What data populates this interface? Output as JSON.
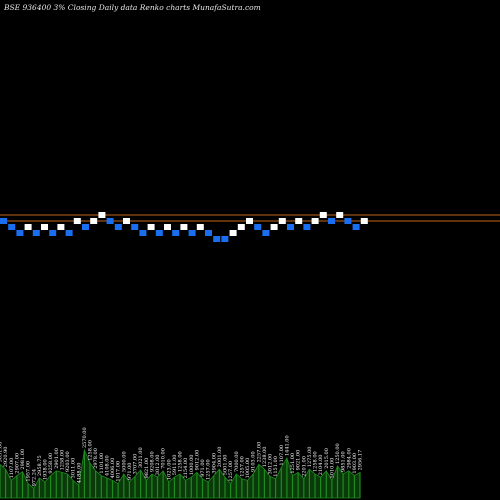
{
  "chart_data": {
    "type": "renko",
    "title": "BSE 936400  3% Closing Daily data  Renko  charts MunafaSutra.com",
    "colors": {
      "up_brick": "#ffffff",
      "down_brick": "#1a6ff0",
      "reference_line": "#c0661c",
      "volume_fill": "#0a3a0a",
      "volume_stroke": "#1f8a1f",
      "background": "#000000"
    },
    "reference_lines": [
      1,
      0
    ],
    "bricks": [
      {
        "dir": "down",
        "level": 0
      },
      {
        "dir": "down",
        "level": -1
      },
      {
        "dir": "down",
        "level": -2
      },
      {
        "dir": "up",
        "level": -1
      },
      {
        "dir": "down",
        "level": -2
      },
      {
        "dir": "up",
        "level": -1
      },
      {
        "dir": "down",
        "level": -2
      },
      {
        "dir": "up",
        "level": -1
      },
      {
        "dir": "down",
        "level": -2
      },
      {
        "dir": "up",
        "level": 0
      },
      {
        "dir": "down",
        "level": -1
      },
      {
        "dir": "up",
        "level": 0
      },
      {
        "dir": "up",
        "level": 1
      },
      {
        "dir": "down",
        "level": 0
      },
      {
        "dir": "down",
        "level": -1
      },
      {
        "dir": "up",
        "level": 0
      },
      {
        "dir": "down",
        "level": -1
      },
      {
        "dir": "down",
        "level": -2
      },
      {
        "dir": "up",
        "level": -1
      },
      {
        "dir": "down",
        "level": -2
      },
      {
        "dir": "up",
        "level": -1
      },
      {
        "dir": "down",
        "level": -2
      },
      {
        "dir": "up",
        "level": -1
      },
      {
        "dir": "down",
        "level": -2
      },
      {
        "dir": "up",
        "level": -1
      },
      {
        "dir": "down",
        "level": -2
      },
      {
        "dir": "down",
        "level": -3
      },
      {
        "dir": "down",
        "level": -3
      },
      {
        "dir": "up",
        "level": -2
      },
      {
        "dir": "up",
        "level": -1
      },
      {
        "dir": "up",
        "level": 0
      },
      {
        "dir": "down",
        "level": -1
      },
      {
        "dir": "down",
        "level": -2
      },
      {
        "dir": "up",
        "level": -1
      },
      {
        "dir": "up",
        "level": 0
      },
      {
        "dir": "down",
        "level": -1
      },
      {
        "dir": "up",
        "level": 0
      },
      {
        "dir": "down",
        "level": -1
      },
      {
        "dir": "up",
        "level": 0
      },
      {
        "dir": "up",
        "level": 1
      },
      {
        "dir": "down",
        "level": 0
      },
      {
        "dir": "up",
        "level": 1
      },
      {
        "dir": "down",
        "level": 0
      },
      {
        "dir": "down",
        "level": -1
      },
      {
        "dir": "up",
        "level": 0
      }
    ],
    "volume": [
      {
        "label": "3051.00",
        "value": 0.42
      },
      {
        "label": "2920.90",
        "value": 0.36
      },
      {
        "label": "1107.00",
        "value": 0.22
      },
      {
        "label": "2907.00",
        "value": 0.28
      },
      {
        "label": "2981.00",
        "value": 0.33
      },
      {
        "label": "1957.00",
        "value": 0.18
      },
      {
        "label": "972.24",
        "value": 0.12
      },
      {
        "label": "2958.75",
        "value": 0.25
      },
      {
        "label": "1938.00",
        "value": 0.2
      },
      {
        "label": "9258.00",
        "value": 0.28
      },
      {
        "label": "2901.00",
        "value": 0.34
      },
      {
        "label": "1258.00",
        "value": 0.32
      },
      {
        "label": "9203.00",
        "value": 0.3
      },
      {
        "label": "3011.00",
        "value": 0.22
      },
      {
        "label": "4188.00",
        "value": 0.16
      },
      {
        "label": "2570.00",
        "value": 0.6
      },
      {
        "label": "1258.00",
        "value": 0.44
      },
      {
        "label": "2978.00",
        "value": 0.34
      },
      {
        "label": "1101.00",
        "value": 0.28
      },
      {
        "label": "4108.00",
        "value": 0.25
      },
      {
        "label": "4006.00",
        "value": 0.22
      },
      {
        "label": "1017.00",
        "value": 0.18
      },
      {
        "label": "5000.00",
        "value": 0.3
      },
      {
        "label": "971.00",
        "value": 0.2
      },
      {
        "label": "3707.00",
        "value": 0.27
      },
      {
        "label": "3021.00",
        "value": 0.35
      },
      {
        "label": "9821.00",
        "value": 0.22
      },
      {
        "label": "9208.00",
        "value": 0.3
      },
      {
        "label": "3012.00",
        "value": 0.26
      },
      {
        "label": "7010.00",
        "value": 0.34
      },
      {
        "label": "1023.00",
        "value": 0.2
      },
      {
        "label": "5911.00",
        "value": 0.26
      },
      {
        "label": "1258.00",
        "value": 0.3
      },
      {
        "label": "2154.00",
        "value": 0.22
      },
      {
        "label": "1000.00",
        "value": 0.26
      },
      {
        "label": "9012.00",
        "value": 0.32
      },
      {
        "label": "971.00",
        "value": 0.24
      },
      {
        "label": "1257.00",
        "value": 0.2
      },
      {
        "label": "3904.00",
        "value": 0.28
      },
      {
        "label": "2001.00",
        "value": 0.36
      },
      {
        "label": "5001.00",
        "value": 0.26
      },
      {
        "label": "1257.00",
        "value": 0.18
      },
      {
        "label": "7000.00",
        "value": 0.3
      },
      {
        "label": "1257.00",
        "value": 0.24
      },
      {
        "label": "1005.00",
        "value": 0.22
      },
      {
        "label": "9103.00",
        "value": 0.3
      },
      {
        "label": "2257.00",
        "value": 0.42
      },
      {
        "label": "1238.00",
        "value": 0.36
      },
      {
        "label": "3012.00",
        "value": 0.27
      },
      {
        "label": "1151.00",
        "value": 0.24
      },
      {
        "label": "1107.00",
        "value": 0.38
      },
      {
        "label": "1441.00",
        "value": 0.5
      },
      {
        "label": "1251.00",
        "value": 0.28
      },
      {
        "label": "9021.00",
        "value": 0.32
      },
      {
        "label": "2201.00",
        "value": 0.24
      },
      {
        "label": "1275.00",
        "value": 0.36
      },
      {
        "label": "1258.00",
        "value": 0.3
      },
      {
        "label": "2104.00",
        "value": 0.26
      },
      {
        "label": "2015.00",
        "value": 0.34
      },
      {
        "label": "5010.00",
        "value": 0.22
      },
      {
        "label": "1250.00",
        "value": 0.4
      },
      {
        "label": "9851.00",
        "value": 0.3
      },
      {
        "label": "2984.00",
        "value": 0.34
      },
      {
        "label": "1903.00",
        "value": 0.28
      },
      {
        "label": "2956.17",
        "value": 0.32
      }
    ]
  }
}
